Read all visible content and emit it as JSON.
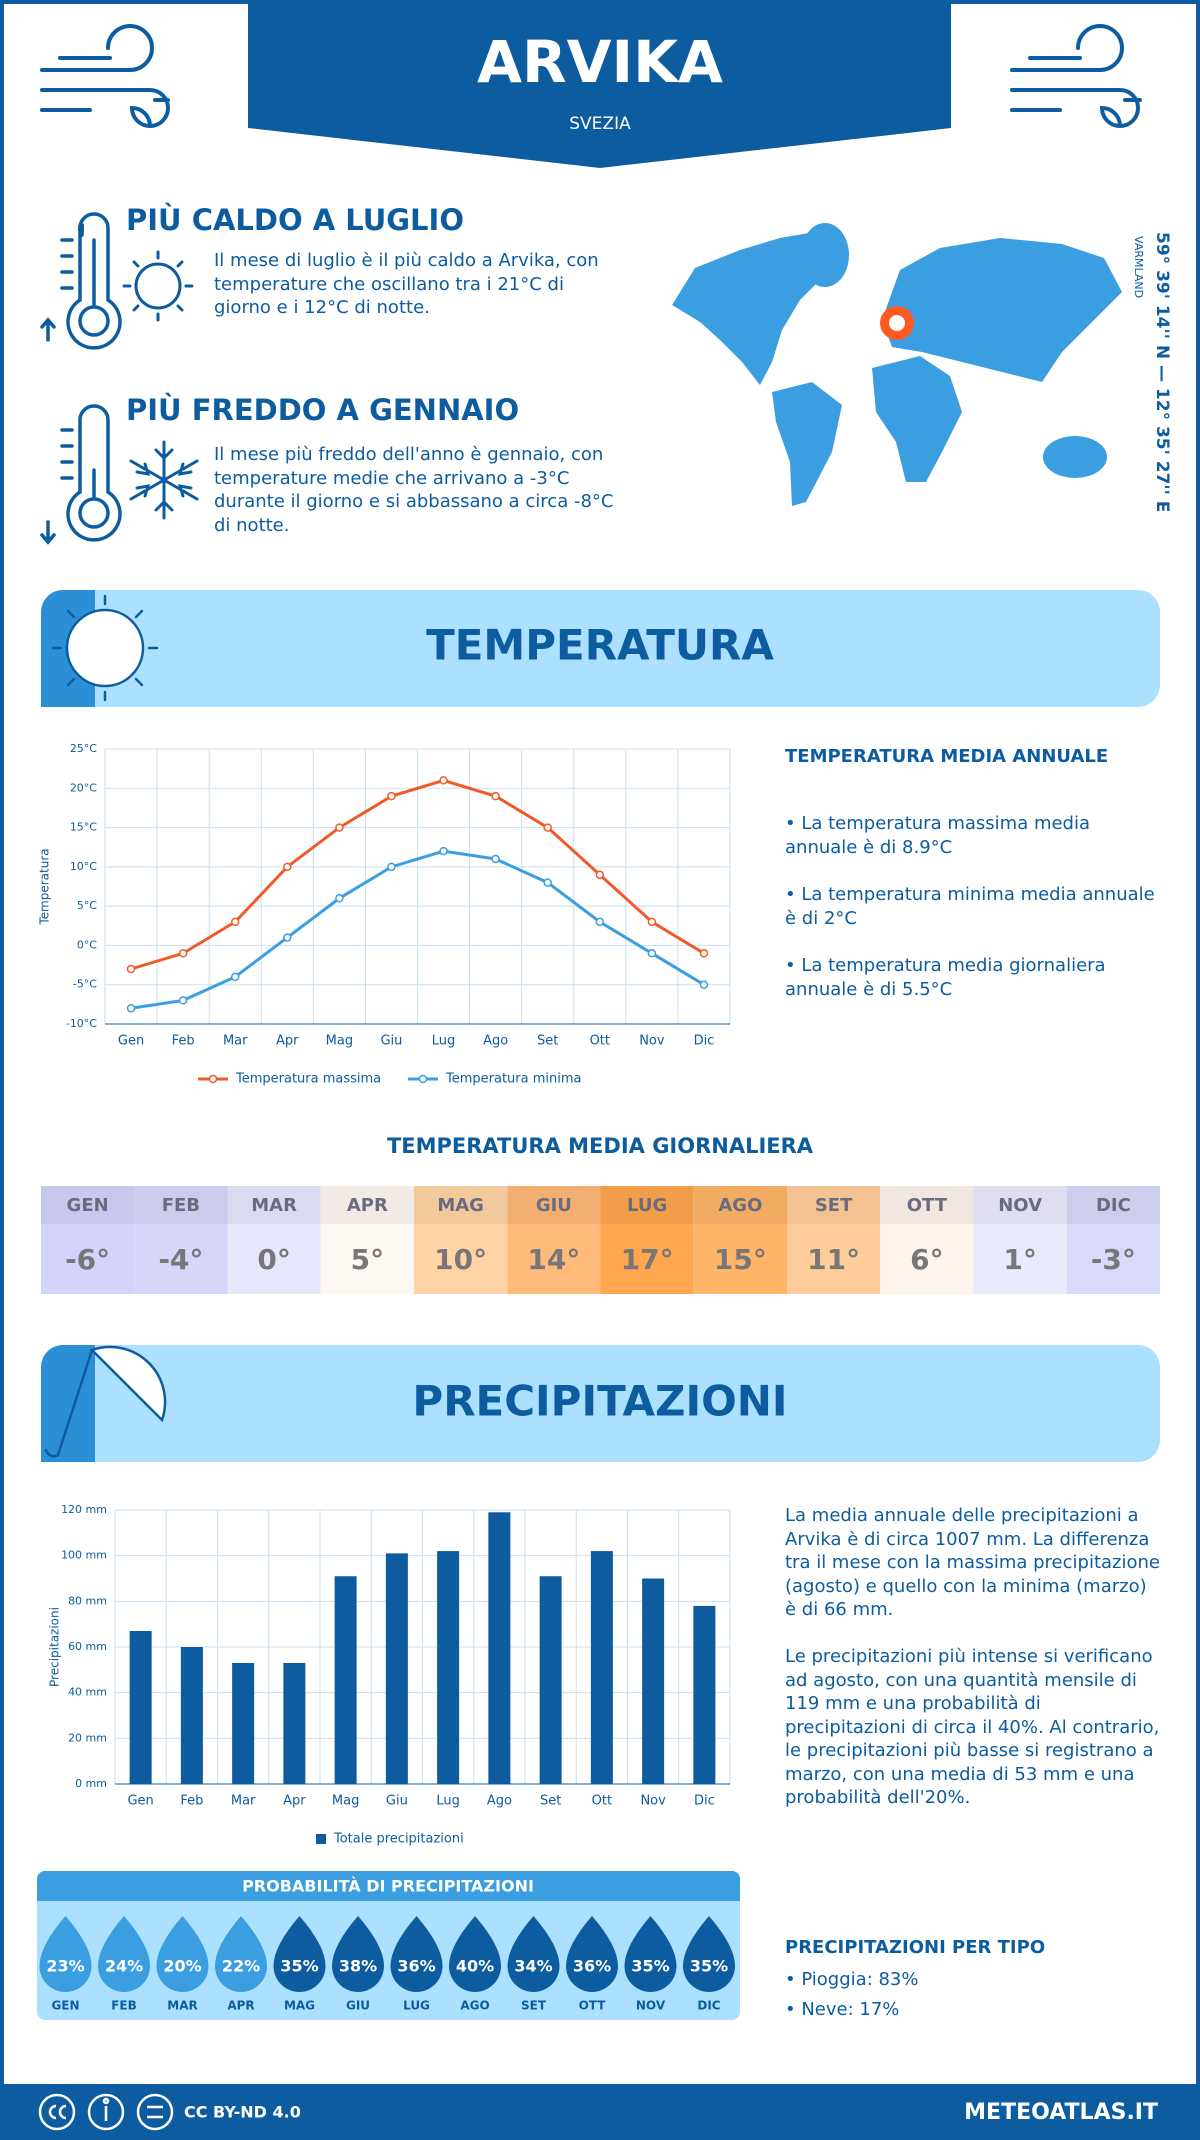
{
  "header": {
    "title": "ARVIKA",
    "subtitle": "SVEZIA"
  },
  "highlights": [
    {
      "title": "PIÙ CALDO A LUGLIO",
      "text": "Il mese di luglio è il più caldo a Arvika, con temperature che oscillano tra i 21°C di giorno e i 12°C di notte."
    },
    {
      "title": "PIÙ FREDDO A GENNAIO",
      "text": "Il mese più freddo dell'anno è gennaio, con temperature medie che arrivano a -3°C durante il giorno e si abbassano a circa -8°C di notte."
    }
  ],
  "map": {
    "coordinates": "59° 39' 14'' N — 12° 35' 27'' E",
    "region": "VARMLAND"
  },
  "temperature_section": {
    "title": "TEMPERATURA",
    "annual_title": "TEMPERATURA MEDIA ANNUALE",
    "annual_points": [
      "• La temperatura massima media annuale è di 8.9°C",
      "• La temperatura minima media annuale è di 2°C",
      "• La temperatura media giornaliera annuale è di 5.5°C"
    ]
  },
  "daily_table": {
    "title": "TEMPERATURA MEDIA GIORNALIERA",
    "months": [
      "GEN",
      "FEB",
      "MAR",
      "APR",
      "MAG",
      "GIU",
      "LUG",
      "AGO",
      "SET",
      "OTT",
      "NOV",
      "DIC"
    ],
    "values": [
      "-6°",
      "-4°",
      "0°",
      "5°",
      "10°",
      "14°",
      "17°",
      "15°",
      "11°",
      "6°",
      "1°",
      "-3°"
    ],
    "colors": [
      "#d3d3fb",
      "#d6d6fb",
      "#e7e7fc",
      "#fff8f2",
      "#ffd3a6",
      "#ffb978",
      "#ffa64f",
      "#ffb568",
      "#ffcd9a",
      "#fff4ec",
      "#eaeafd",
      "#d9d9fb"
    ]
  },
  "precipitation_section": {
    "title": "PRECIPITAZIONI",
    "paragraphs": [
      "La media annuale delle precipitazioni a Arvika è di circa 1007 mm. La differenza tra il mese con la massima precipitazione (agosto) e quello con la minima (marzo) è di 66 mm.",
      "Le precipitazioni più intense si verificano ad agosto, con una quantità mensile di 119 mm e una probabilità di precipitazioni di circa il 40%. Al contrario, le precipitazioni più basse si registrano a marzo, con una media di 53 mm e una probabilità dell'20%."
    ],
    "type_title": "PRECIPITAZIONI PER TIPO",
    "types": [
      "• Pioggia: 83%",
      "• Neve: 17%"
    ]
  },
  "footer": {
    "license": "CC BY-ND 4.0",
    "site": "METEOATLAS.IT"
  },
  "chart_data": [
    {
      "type": "line",
      "y_label": "Temperatura",
      "categories": [
        "Gen",
        "Feb",
        "Mar",
        "Apr",
        "Mag",
        "Giu",
        "Lug",
        "Ago",
        "Set",
        "Ott",
        "Nov",
        "Dic"
      ],
      "ylim": [
        -10,
        25
      ],
      "yticks": [
        {
          "value": -10,
          "label": "-10°C"
        },
        {
          "value": -5,
          "label": "-5°C"
        },
        {
          "value": 0,
          "label": "0°C"
        },
        {
          "value": 5,
          "label": "5°C"
        },
        {
          "value": 10,
          "label": "10°C"
        },
        {
          "value": 15,
          "label": "15°C"
        },
        {
          "value": 20,
          "label": "20°C"
        },
        {
          "value": 25,
          "label": "25°C"
        }
      ],
      "grid": true,
      "series": [
        {
          "name": "Temperatura massima",
          "color": "#f05a28",
          "values": [
            -3,
            -1,
            3,
            10,
            15,
            19,
            21,
            19,
            15,
            9,
            3,
            -1
          ]
        },
        {
          "name": "Temperatura minima",
          "color": "#3a9ee0",
          "values": [
            -8,
            -7,
            -4,
            1,
            6,
            10,
            12,
            11,
            8,
            3,
            -1,
            -5
          ]
        }
      ]
    },
    {
      "type": "bar",
      "y_label": "Precipitazioni",
      "categories": [
        "Gen",
        "Feb",
        "Mar",
        "Apr",
        "Mag",
        "Giu",
        "Lug",
        "Ago",
        "Set",
        "Ott",
        "Nov",
        "Dic"
      ],
      "ylim": [
        0,
        120
      ],
      "yticks": [
        {
          "value": 0,
          "label": "0 mm"
        },
        {
          "value": 20,
          "label": "20 mm"
        },
        {
          "value": 40,
          "label": "40 mm"
        },
        {
          "value": 60,
          "label": "60 mm"
        },
        {
          "value": 80,
          "label": "80 mm"
        },
        {
          "value": 100,
          "label": "100 mm"
        },
        {
          "value": 120,
          "label": "120 mm"
        }
      ],
      "grid": true,
      "series": [
        {
          "name": "Totale precipitazioni",
          "color": "#0d5ca0",
          "values": [
            67,
            60,
            53,
            53,
            91,
            101,
            102,
            119,
            91,
            102,
            90,
            78
          ]
        }
      ]
    },
    {
      "type": "drops",
      "title": "PROBABILITÀ DI PRECIPITAZIONI",
      "categories": [
        "GEN",
        "FEB",
        "MAR",
        "APR",
        "MAG",
        "GIU",
        "LUG",
        "AGO",
        "SET",
        "OTT",
        "NOV",
        "DIC"
      ],
      "values": [
        23,
        24,
        20,
        22,
        35,
        38,
        36,
        40,
        34,
        36,
        35,
        35
      ],
      "value_labels": [
        "23%",
        "24%",
        "20%",
        "22%",
        "35%",
        "38%",
        "36%",
        "40%",
        "34%",
        "36%",
        "35%",
        "35%"
      ],
      "colors": [
        "#3a9ee0",
        "#3a9ee0",
        "#3a9ee0",
        "#3a9ee0",
        "#0d5ca0",
        "#0d5ca0",
        "#0d5ca0",
        "#0d5ca0",
        "#0d5ca0",
        "#0d5ca0",
        "#0d5ca0",
        "#0d5ca0"
      ]
    }
  ]
}
